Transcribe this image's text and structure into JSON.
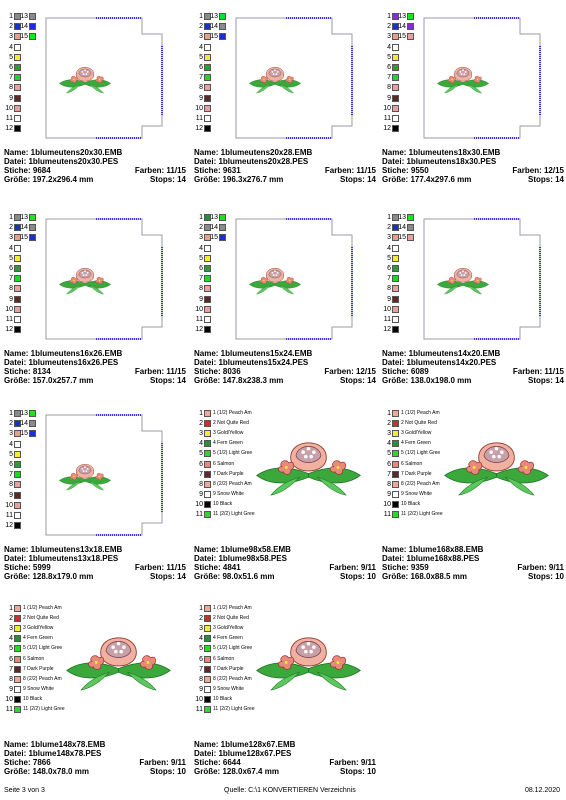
{
  "footer": {
    "page": "Seite 3 von 3",
    "source": "Quelle: C:\\1 KONVERTIEREN Verzeichnis",
    "date": "08.12.2020"
  },
  "labels": {
    "name": "Name:",
    "file": "Datei:",
    "stitches": "Stiche:",
    "colors": "Farben:",
    "size": "Größe:",
    "stops": "Stops:"
  },
  "designs": [
    {
      "name": "1blumeutens20x30.EMB",
      "file": "1blumeutens20x30.PES",
      "stitches": "9684",
      "colors": "11/15",
      "size": "197.2x296.4 mm",
      "stops": "14",
      "legend": "numbers",
      "legend_labels": [
        "1",
        "2",
        "3",
        "4",
        "5",
        "6",
        "7",
        "8",
        "9",
        "10",
        "11",
        "12",
        "13",
        "14",
        "15"
      ],
      "legend_colors": [
        "#8a8a8a",
        "#1a2fd0",
        "#e4a08a",
        "#ffffff",
        "#f2ef2a",
        "#2e9a3c",
        "#10e020",
        "#e8a0a0",
        "#5a2a2a",
        "#e8a0a0",
        "#ffffff",
        "#000000",
        "#8a8a8a",
        "#1a2fd0",
        "#20e020"
      ],
      "preview": "box"
    },
    {
      "name": "1blumeutens20x28.EMB",
      "file": "1blumeutens20x28.PES",
      "stitches": "9631",
      "colors": "11/15",
      "size": "196.3x276.7 mm",
      "stops": "14",
      "legend": "numbers",
      "legend_labels": [
        "1",
        "2",
        "3",
        "4",
        "5",
        "6",
        "7",
        "8",
        "9",
        "10",
        "11",
        "12",
        "13",
        "14",
        "15"
      ],
      "legend_colors": [
        "#8a8a8a",
        "#1a2fd0",
        "#e4a08a",
        "#ffffff",
        "#f2ef2a",
        "#2e9a3c",
        "#10e020",
        "#e8a0a0",
        "#5a2a2a",
        "#e8a0a0",
        "#ffffff",
        "#000000",
        "#10e020",
        "#8a8a8a",
        "#1a2fd0"
      ],
      "preview": "box"
    },
    {
      "name": "1blumeutens18x30.EMB",
      "file": "1blumeutens18x30.PES",
      "stitches": "9550",
      "colors": "12/15",
      "size": "177.4x297.6 mm",
      "stops": "14",
      "legend": "numbers",
      "legend_labels": [
        "1",
        "2",
        "3",
        "4",
        "5",
        "6",
        "7",
        "8",
        "9",
        "10",
        "11",
        "12",
        "13",
        "14",
        "15"
      ],
      "legend_colors": [
        "#8a2ad0",
        "#1a2fd0",
        "#e4a08a",
        "#ffffff",
        "#f2ef2a",
        "#2e9a3c",
        "#10e020",
        "#e8a0a0",
        "#5a2a2a",
        "#e8a0a0",
        "#ffffff",
        "#000000",
        "#20e020",
        "#8a2ad0",
        "#e8a0a0"
      ],
      "preview": "box"
    },
    {
      "name": "1blumeutens16x26.EMB",
      "file": "1blumeutens16x26.PES",
      "stitches": "8134",
      "colors": "11/15",
      "size": "157.0x257.7 mm",
      "stops": "14",
      "legend": "numbers",
      "legend_labels": [
        "1",
        "2",
        "3",
        "4",
        "5",
        "6",
        "7",
        "8",
        "9",
        "10",
        "11",
        "12",
        "13",
        "14",
        "15"
      ],
      "legend_colors": [
        "#8a8a8a",
        "#1a2fd0",
        "#e4a08a",
        "#ffffff",
        "#f2ef2a",
        "#2e9a3c",
        "#10e020",
        "#e8a0a0",
        "#5a2a2a",
        "#e8a0a0",
        "#ffffff",
        "#000000",
        "#20e020",
        "#8a8a8a",
        "#1a2fd0"
      ],
      "preview": "box"
    },
    {
      "name": "1blumeutens15x24.EMB",
      "file": "1blumeutens15x24.PES",
      "stitches": "8036",
      "colors": "12/15",
      "size": "147.8x238.3 mm",
      "stops": "14",
      "legend": "numbers",
      "legend_labels": [
        "1",
        "2",
        "3",
        "4",
        "5",
        "6",
        "7",
        "8",
        "9",
        "10",
        "11",
        "12",
        "13",
        "14",
        "15"
      ],
      "legend_colors": [
        "#2e8a3c",
        "#8a8a8a",
        "#e4a08a",
        "#ffffff",
        "#f2ef2a",
        "#2e9a3c",
        "#10e020",
        "#e8a0a0",
        "#5a2a2a",
        "#e8a0a0",
        "#ffffff",
        "#000000",
        "#20e020",
        "#8a8a8a",
        "#1a2fd0"
      ],
      "preview": "box"
    },
    {
      "name": "1blumeutens14x20.EMB",
      "file": "1blumeutens14x20.PES",
      "stitches": "6089",
      "colors": "11/15",
      "size": "138.0x198.0 mm",
      "stops": "14",
      "legend": "numbers",
      "legend_labels": [
        "1",
        "2",
        "3",
        "4",
        "5",
        "6",
        "7",
        "8",
        "9",
        "10",
        "11",
        "12",
        "13",
        "14",
        "15"
      ],
      "legend_colors": [
        "#8a8a8a",
        "#1a2fd0",
        "#e4a08a",
        "#ffffff",
        "#f2ef2a",
        "#2e9a3c",
        "#10e020",
        "#e8a0a0",
        "#5a2a2a",
        "#e8a0a0",
        "#ffffff",
        "#000000",
        "#20e020",
        "#8a8a8a",
        "#e8a0a0"
      ],
      "preview": "box"
    },
    {
      "name": "1blumeutens13x18.EMB",
      "file": "1blumeutens13x18.PES",
      "stitches": "5999",
      "colors": "11/15",
      "size": "128.8x179.0 mm",
      "stops": "14",
      "legend": "numbers",
      "legend_labels": [
        "1",
        "2",
        "3",
        "4",
        "5",
        "6",
        "7",
        "8",
        "9",
        "10",
        "11",
        "12",
        "13",
        "14",
        "15"
      ],
      "legend_colors": [
        "#8a8a8a",
        "#1a2fd0",
        "#e4a08a",
        "#ffffff",
        "#f2ef2a",
        "#2e9a3c",
        "#10e020",
        "#e8a0a0",
        "#5a2a2a",
        "#e8a0a0",
        "#ffffff",
        "#000000",
        "#20e020",
        "#8a8a8a",
        "#1a2fd0"
      ],
      "preview": "box"
    },
    {
      "name": "1blume98x58.EMB",
      "file": "1blume98x58.PES",
      "stitches": "4841",
      "colors": "9/11",
      "size": "98.0x51.6 mm",
      "stops": "10",
      "legend": "names",
      "legend_labels": [
        "1 (1/2) Peach Am",
        "2 Not Quite Red",
        "3 Gold/Yellow",
        "4 Fern Green",
        "5 (1/2) Light Gree",
        "6 Salmon",
        "7 Dark Purple",
        "8 (2/2) Peach Am",
        "9 Snow White",
        "10 Black",
        "11 (2/2) Light Gree"
      ],
      "legend_colors": [
        "#f0a898",
        "#c83030",
        "#f2ef2a",
        "#2e8a3c",
        "#20e020",
        "#e88a7a",
        "#5a2a2a",
        "#f0a898",
        "#ffffff",
        "#000000",
        "#20e020"
      ],
      "preview": "flower"
    },
    {
      "name": "1blume168x88.EMB",
      "file": "1blume168x88.PES",
      "stitches": "9359",
      "colors": "9/11",
      "size": "168.0x88.5 mm",
      "stops": "10",
      "legend": "names",
      "legend_labels": [
        "1 (1/2) Peach Am",
        "2 Not Quite Red",
        "3 Gold/Yellow",
        "4 Fern Green",
        "5 (1/2) Light Gree",
        "6 Salmon",
        "7 Dark Purple",
        "8 (2/2) Peach Am",
        "9 Snow White",
        "10 Black",
        "11 (2/2) Light Gree"
      ],
      "legend_colors": [
        "#f0a898",
        "#c83030",
        "#f2ef2a",
        "#2e8a3c",
        "#20e020",
        "#e88a7a",
        "#5a2a2a",
        "#f0a898",
        "#ffffff",
        "#000000",
        "#20e020"
      ],
      "preview": "flower"
    },
    {
      "name": "1blume148x78.EMB",
      "file": "1blume148x78.PES",
      "stitches": "7866",
      "colors": "9/11",
      "size": "148.0x78.0 mm",
      "stops": "10",
      "legend": "names",
      "legend_labels": [
        "1 (1/2) Peach Am",
        "2 Not Quite Red",
        "3 Gold/Yellow",
        "4 Fern Green",
        "5 (1/2) Light Gree",
        "6 Salmon",
        "7 Dark Purple",
        "8 (2/2) Peach Am",
        "9 Snow White",
        "10 Black",
        "11 (2/2) Light Gree"
      ],
      "legend_colors": [
        "#f0a898",
        "#c83030",
        "#f2ef2a",
        "#2e8a3c",
        "#20e020",
        "#e88a7a",
        "#5a2a2a",
        "#f0a898",
        "#ffffff",
        "#000000",
        "#20e020"
      ],
      "preview": "flower"
    },
    {
      "name": "1blume128x67.EMB",
      "file": "1blume128x67.PES",
      "stitches": "6644",
      "colors": "9/11",
      "size": "128.0x67.4 mm",
      "stops": "10",
      "legend": "names",
      "legend_labels": [
        "1 (1/2) Peach Am",
        "2 Not Quite Red",
        "3 Gold/Yellow",
        "4 Fern Green",
        "5 (1/2) Light Gree",
        "6 Salmon",
        "7 Dark Purple",
        "8 (2/2) Peach Am",
        "9 Snow White",
        "10 Black",
        "11 (2/2) Light Gree"
      ],
      "legend_colors": [
        "#f0a898",
        "#c83030",
        "#f2ef2a",
        "#2e8a3c",
        "#20e020",
        "#e88a7a",
        "#5a2a2a",
        "#f0a898",
        "#ffffff",
        "#000000",
        "#20e020"
      ],
      "preview": "flower"
    }
  ]
}
